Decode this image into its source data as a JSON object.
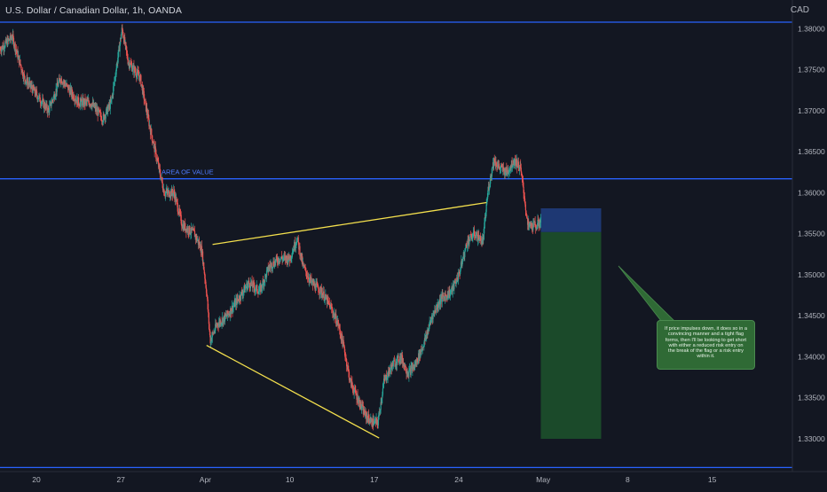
{
  "header": {
    "symbol_title": "U.S. Dollar / Canadian Dollar, 1h, OANDA",
    "currency": "CAD"
  },
  "colors": {
    "background": "#131722",
    "bull_candle": "#26a69a",
    "bear_candle": "#ef5350",
    "level_line": "#2962ff",
    "trend_line": "#f4e04d",
    "stop_zone": "#1f3a78",
    "target_zone": "#1b4d2b",
    "axis_text": "#b2b5be"
  },
  "annotations": {
    "area_of_value": "AREA OF VALUE",
    "note": "If price impulses down, it does so in a convincing manner and a tight flag forms, then I'll be looking to get short with either a reduced risk entry on the break of the flag or a risk entry within it."
  },
  "chart_data": {
    "type": "candlestick",
    "title": "U.S. Dollar / Canadian Dollar, 1h, OANDA",
    "y_axis_side": "right",
    "ylim": [
      1.326,
      1.3835
    ],
    "x_range": [
      17.0,
      49.8
    ],
    "y_ticks": [
      "1.38000",
      "1.37500",
      "1.37000",
      "1.36500",
      "1.36000",
      "1.35500",
      "1.35000",
      "1.34500",
      "1.34000",
      "1.33500",
      "1.33000"
    ],
    "x_ticks": [
      {
        "day": 20,
        "label": "20"
      },
      {
        "day": 27,
        "label": "27"
      },
      {
        "day": 34,
        "label": "Apr"
      },
      {
        "day": 41,
        "label": "10"
      },
      {
        "day": 48,
        "label": "17"
      },
      {
        "day": 55,
        "label": "24"
      },
      {
        "day": 62,
        "label": "May"
      },
      {
        "day": 69,
        "label": "8"
      },
      {
        "day": 76,
        "label": "15"
      }
    ],
    "horizontal_levels": [
      {
        "price": 1.3808
      },
      {
        "price": 1.3617,
        "label": "AREA OF VALUE"
      },
      {
        "price": 1.3265
      }
    ],
    "trendlines": [
      {
        "from": {
          "day": 34.6,
          "price": 1.3537
        },
        "to": {
          "day": 57.3,
          "price": 1.3588
        }
      },
      {
        "from": {
          "day": 34.1,
          "price": 1.3414
        },
        "to": {
          "day": 48.4,
          "price": 1.3301
        }
      }
    ],
    "position": {
      "side": "short",
      "start_day": 61.8,
      "end_day": 66.8,
      "stop": 1.3581,
      "entry": 1.3552,
      "target": 1.33
    },
    "price_path": [
      {
        "day": 17.0,
        "price": 1.3775
      },
      {
        "day": 18.0,
        "price": 1.379
      },
      {
        "day": 19.0,
        "price": 1.374
      },
      {
        "day": 20.0,
        "price": 1.372
      },
      {
        "day": 21.0,
        "price": 1.37
      },
      {
        "day": 22.0,
        "price": 1.374
      },
      {
        "day": 23.5,
        "price": 1.371
      },
      {
        "day": 24.5,
        "price": 1.371
      },
      {
        "day": 25.5,
        "price": 1.369
      },
      {
        "day": 26.2,
        "price": 1.371
      },
      {
        "day": 26.7,
        "price": 1.376
      },
      {
        "day": 27.1,
        "price": 1.38
      },
      {
        "day": 27.6,
        "price": 1.376
      },
      {
        "day": 28.6,
        "price": 1.374
      },
      {
        "day": 29.4,
        "price": 1.368
      },
      {
        "day": 30.0,
        "price": 1.364
      },
      {
        "day": 30.6,
        "price": 1.36
      },
      {
        "day": 31.4,
        "price": 1.36
      },
      {
        "day": 32.1,
        "price": 1.356
      },
      {
        "day": 33.1,
        "price": 1.355
      },
      {
        "day": 33.7,
        "price": 1.353
      },
      {
        "day": 34.1,
        "price": 1.348
      },
      {
        "day": 34.4,
        "price": 1.342
      },
      {
        "day": 35.0,
        "price": 1.344
      },
      {
        "day": 35.8,
        "price": 1.345
      },
      {
        "day": 36.7,
        "price": 1.347
      },
      {
        "day": 37.6,
        "price": 1.349
      },
      {
        "day": 38.5,
        "price": 1.348
      },
      {
        "day": 39.3,
        "price": 1.351
      },
      {
        "day": 40.1,
        "price": 1.352
      },
      {
        "day": 41.0,
        "price": 1.352
      },
      {
        "day": 41.6,
        "price": 1.3545
      },
      {
        "day": 42.1,
        "price": 1.351
      },
      {
        "day": 42.8,
        "price": 1.349
      },
      {
        "day": 43.6,
        "price": 1.348
      },
      {
        "day": 44.4,
        "price": 1.346
      },
      {
        "day": 45.0,
        "price": 1.344
      },
      {
        "day": 45.5,
        "price": 1.341
      },
      {
        "day": 46.0,
        "price": 1.337
      },
      {
        "day": 46.6,
        "price": 1.335
      },
      {
        "day": 47.2,
        "price": 1.333
      },
      {
        "day": 47.8,
        "price": 1.332
      },
      {
        "day": 48.3,
        "price": 1.332
      },
      {
        "day": 48.8,
        "price": 1.337
      },
      {
        "day": 49.5,
        "price": 1.339
      },
      {
        "day": 50.2,
        "price": 1.34
      },
      {
        "day": 50.8,
        "price": 1.338
      },
      {
        "day": 51.4,
        "price": 1.339
      },
      {
        "day": 52.2,
        "price": 1.342
      },
      {
        "day": 52.8,
        "price": 1.345
      },
      {
        "day": 53.5,
        "price": 1.347
      },
      {
        "day": 54.4,
        "price": 1.348
      },
      {
        "day": 55.0,
        "price": 1.35
      },
      {
        "day": 55.7,
        "price": 1.354
      },
      {
        "day": 56.3,
        "price": 1.355
      },
      {
        "day": 57.0,
        "price": 1.354
      },
      {
        "day": 57.4,
        "price": 1.36
      },
      {
        "day": 57.9,
        "price": 1.364
      },
      {
        "day": 58.4,
        "price": 1.363
      },
      {
        "day": 59.0,
        "price": 1.3625
      },
      {
        "day": 59.6,
        "price": 1.364
      },
      {
        "day": 60.1,
        "price": 1.363
      },
      {
        "day": 60.4,
        "price": 1.36
      },
      {
        "day": 60.7,
        "price": 1.356
      },
      {
        "day": 61.4,
        "price": 1.356
      },
      {
        "day": 61.8,
        "price": 1.3565
      }
    ]
  }
}
